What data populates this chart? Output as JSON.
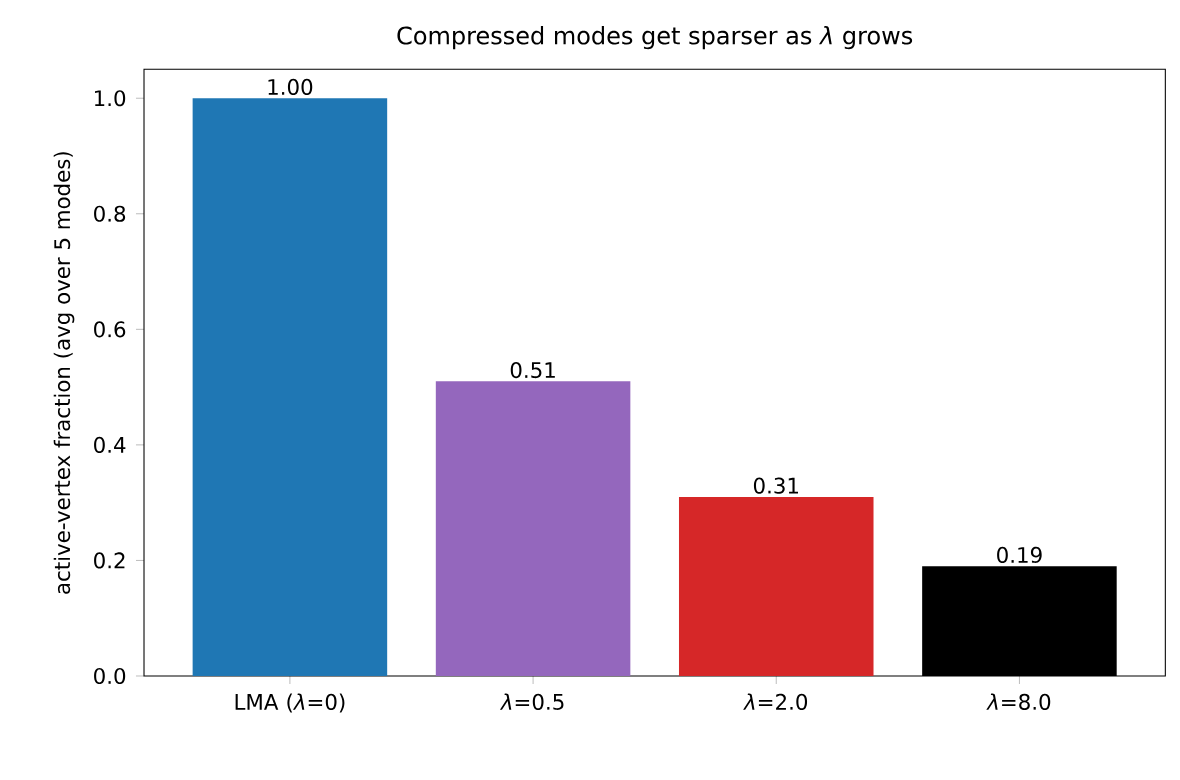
{
  "chart_data": {
    "type": "bar",
    "title": "Compressed modes get sparser as *λ* grows",
    "ylabel": "active-vertex fraction (avg over 5 modes)",
    "categories": [
      "LMA (*λ*=0)",
      "*λ*=0.5",
      "*λ*=2.0",
      "*λ*=8.0"
    ],
    "values": [
      1.0,
      0.51,
      0.31,
      0.19
    ],
    "value_labels": [
      "1.00",
      "0.51",
      "0.31",
      "0.19"
    ],
    "colors": [
      "#1f77b4",
      "#9467bd",
      "#d62728",
      "#000000"
    ],
    "ylim": [
      0,
      1.05
    ],
    "yticks": [
      {
        "value": 0,
        "label": "0.0"
      },
      {
        "value": 0.2,
        "label": "0.2"
      },
      {
        "value": 0.4,
        "label": "0.4"
      },
      {
        "value": 0.6,
        "label": "0.6"
      },
      {
        "value": 0.8,
        "label": "0.8"
      },
      {
        "value": 1.0,
        "label": "1.0"
      }
    ],
    "grid": false
  }
}
